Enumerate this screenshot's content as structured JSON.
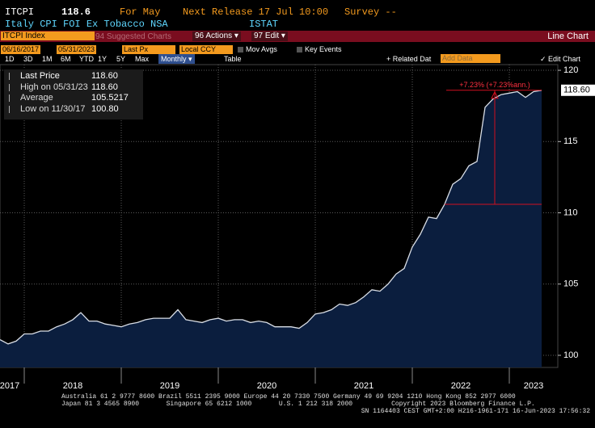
{
  "header": {
    "ticker": "ITCPI",
    "last": "118.6",
    "period": "For May",
    "next_release": "Next Release 17 Jul 10:00",
    "survey": "Survey --",
    "description": "Italy CPI FOI Ex Tobacco NSA",
    "source": "ISTAT"
  },
  "menu": {
    "security": "ITCPI Index",
    "suggested": "94 Suggested Charts",
    "actions": "96 Actions ▾",
    "edit": "97 Edit ▾",
    "chart_type": "Line Chart"
  },
  "toolbar": {
    "start_date": "06/16/2017",
    "end_date": "05/31/2023",
    "field": "Last Px",
    "currency": "Local CCY",
    "mov_avgs": "Mov Avgs",
    "key_events": "Key Events",
    "ranges": [
      "1D",
      "3D",
      "1M",
      "6M",
      "YTD",
      "1Y",
      "5Y",
      "Max"
    ],
    "frequency": "Monthly ▾",
    "table": "Table",
    "related": "+ Related Dat",
    "add_data": "Add Data",
    "edit_chart": "✓ Edit Chart"
  },
  "legend": [
    {
      "label": "Last Price",
      "value": "118.60"
    },
    {
      "label": "High on 05/31/23",
      "value": "118.60"
    },
    {
      "label": "Average",
      "value": "105.5217"
    },
    {
      "label": "Low on 11/30/17",
      "value": "100.80"
    }
  ],
  "footer": [
    "Australia 61 2 9777 8600 Brazil 5511 2395 9000 Europe 44 20 7330 7500 Germany 49 69 9204 1210 Hong Kong 852 2977 6000",
    "Japan 81 3 4565 8900       Singapore 65 6212 1000       U.S. 1 212 318 2000          Copyright 2023 Bloomberg Finance L.P.",
    "SN 1164403 CEST GMT+2:00 H216-1961-171 16-Jun-2023 17:56:32"
  ],
  "chart_data": {
    "type": "area",
    "x": [
      2017.75,
      2017.8333,
      2017.9167,
      2018,
      2018.0833,
      2018.1667,
      2018.25,
      2018.3333,
      2018.4167,
      2018.5,
      2018.5833,
      2018.6667,
      2018.75,
      2018.8333,
      2018.9167,
      2019,
      2019.0833,
      2019.1667,
      2019.25,
      2019.3333,
      2019.4167,
      2019.5,
      2019.5833,
      2019.6667,
      2019.75,
      2019.8333,
      2019.9167,
      2020,
      2020.0833,
      2020.1667,
      2020.25,
      2020.3333,
      2020.4167,
      2020.5,
      2020.5833,
      2020.6667,
      2020.75,
      2020.8333,
      2020.9167,
      2021,
      2021.0833,
      2021.1667,
      2021.25,
      2021.3333,
      2021.4167,
      2021.5,
      2021.5833,
      2021.6667,
      2021.75,
      2021.8333,
      2021.9167,
      2022,
      2022.0833,
      2022.1667,
      2022.25,
      2022.3333,
      2022.4167,
      2022.5,
      2022.5833,
      2022.6667,
      2022.75,
      2022.8333,
      2022.9167,
      2023,
      2023.0833,
      2023.1667,
      2023.25,
      2023.3333
    ],
    "series": [
      {
        "name": "Last Price",
        "color": "#d9dee6",
        "fill": "#0b1e3e",
        "values": [
          101.1,
          100.8,
          101.0,
          101.5,
          101.5,
          101.7,
          101.7,
          102.0,
          102.2,
          102.5,
          103.0,
          102.4,
          102.4,
          102.2,
          102.1,
          102.0,
          102.2,
          102.3,
          102.5,
          102.6,
          102.6,
          102.6,
          103.2,
          102.5,
          102.4,
          102.3,
          102.5,
          102.6,
          102.4,
          102.5,
          102.5,
          102.3,
          102.4,
          102.3,
          102.0,
          102.0,
          102.0,
          101.9,
          102.3,
          102.9,
          103.0,
          103.2,
          103.6,
          103.5,
          103.7,
          104.1,
          104.6,
          104.5,
          105.0,
          105.7,
          106.1,
          107.6,
          108.5,
          109.7,
          109.6,
          110.6,
          112.0,
          112.4,
          113.3,
          113.6,
          117.4,
          118.0,
          118.3,
          118.4,
          118.5,
          118.1,
          118.5,
          118.6
        ]
      }
    ],
    "last_label": "118.60",
    "annotation": "+7.23% (+7.23%ann.)",
    "xlim": [
      2017.75,
      2023.5
    ],
    "ylim": [
      99.15,
      120.4
    ],
    "yticks": [
      100,
      105,
      110,
      115,
      120
    ],
    "xticks": [
      {
        "value": 2017.5,
        "label": "2017"
      },
      {
        "value": 2018.5,
        "label": "2018"
      },
      {
        "value": 2019.5,
        "label": "2019"
      },
      {
        "value": 2020.5,
        "label": "2020"
      },
      {
        "value": 2021.5,
        "label": "2021"
      },
      {
        "value": 2022.5,
        "label": "2022"
      },
      {
        "value": 2023.5,
        "label": "2023"
      }
    ],
    "xgrid": [
      2018,
      2019,
      2020,
      2021,
      2022,
      2023
    ],
    "grid": true,
    "axis_side": "right"
  }
}
